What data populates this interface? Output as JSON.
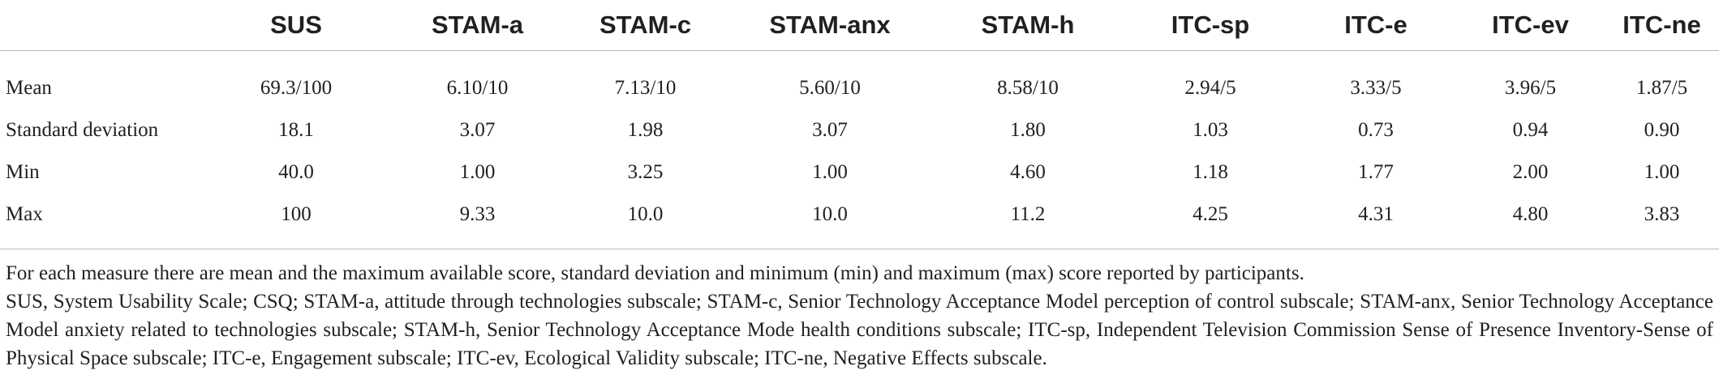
{
  "table": {
    "corner": "",
    "columns": [
      "SUS",
      "STAM-a",
      "STAM-c",
      "STAM-anx",
      "STAM-h",
      "ITC-sp",
      "ITC-e",
      "ITC-ev",
      "ITC-ne"
    ],
    "rows": [
      {
        "label": "Mean",
        "values": [
          "69.3/100",
          "6.10/10",
          "7.13/10",
          "5.60/10",
          "8.58/10",
          "2.94/5",
          "3.33/5",
          "3.96/5",
          "1.87/5"
        ]
      },
      {
        "label": "Standard deviation",
        "values": [
          "18.1",
          "3.07",
          "1.98",
          "3.07",
          "1.80",
          "1.03",
          "0.73",
          "0.94",
          "0.90"
        ]
      },
      {
        "label": "Min",
        "values": [
          "40.0",
          "1.00",
          "3.25",
          "1.00",
          "4.60",
          "1.18",
          "1.77",
          "2.00",
          "1.00"
        ]
      },
      {
        "label": "Max",
        "values": [
          "100",
          "9.33",
          "10.0",
          "10.0",
          "11.2",
          "4.25",
          "4.31",
          "4.80",
          "3.83"
        ]
      }
    ]
  },
  "footnotes": {
    "note": "For each measure there are mean and the maximum available score, standard deviation and minimum (min) and maximum (max) score reported by participants.",
    "abbreviations": "SUS, System Usability Scale; CSQ; STAM-a, attitude through technologies subscale; STAM-c, Senior Technology Acceptance Model perception of control subscale; STAM-anx, Senior Technology Acceptance Model anxiety related to technologies subscale; STAM-h, Senior Technology Acceptance Mode health conditions subscale; ITC-sp, Independent Television Commission Sense of Presence Inventory-Sense of Physical Space subscale; ITC-e, Engagement subscale; ITC-ev, Ecological Validity subscale; ITC-ne, Negative Effects subscale."
  }
}
